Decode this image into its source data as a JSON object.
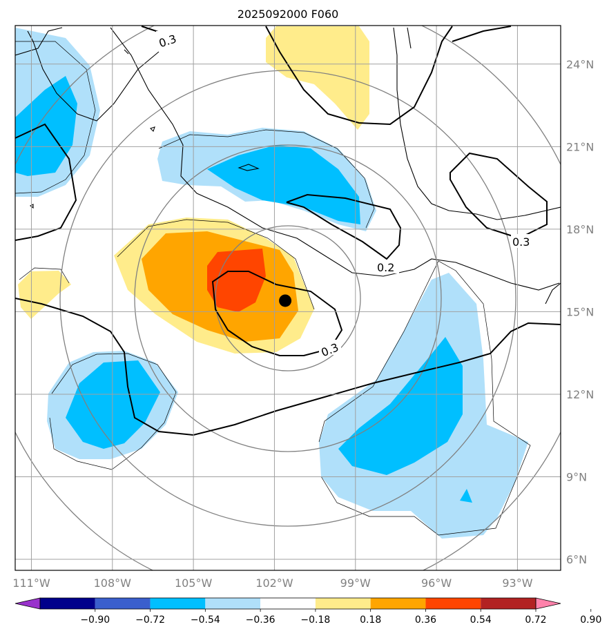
{
  "chart_data": {
    "type": "map-contour",
    "title": "2025092000 F060",
    "region": {
      "lon_range": [
        -111.6,
        -91.4
      ],
      "lat_range": [
        5.6,
        25.4
      ]
    },
    "lon_ticks": [
      -111,
      -108,
      -105,
      -102,
      -99,
      -96,
      -93
    ],
    "lon_labels": [
      "111°W",
      "108°W",
      "105°W",
      "102°W",
      "99°W",
      "96°W",
      "93°W"
    ],
    "lat_ticks": [
      6,
      9,
      12,
      15,
      18,
      21,
      24
    ],
    "lat_labels": [
      "6°N",
      "9°N",
      "12°N",
      "15°N",
      "18°N",
      "21°N",
      "24°N"
    ],
    "grid": true,
    "center_marker": {
      "lon": -101.6,
      "lat": 15.4
    },
    "range_rings_deg": [
      3,
      6,
      9,
      12
    ],
    "colorbar": {
      "levels": [
        -0.9,
        -0.72,
        -0.54,
        -0.36,
        -0.18,
        0.18,
        0.36,
        0.54,
        0.72,
        0.9
      ],
      "tick_labels": [
        "−0.90",
        "−0.72",
        "−0.54",
        "−0.36",
        "−0.18",
        "0.18",
        "0.36",
        "0.54",
        "0.72",
        "0.90"
      ],
      "colors": [
        "#9932cc",
        "#00008b",
        "#3a5fcd",
        "#00bfff",
        "#b0e0fa",
        "#ffffff",
        "#ffec8b",
        "#ffa500",
        "#ff4500",
        "#b22222",
        "#ff82ab"
      ],
      "extend": "both"
    },
    "contour_labels": [
      "0.3",
      "0.3",
      "0.2",
      "0.3"
    ],
    "shaded_regions": [
      {
        "sign": "positive",
        "max_level": 0.72,
        "center": [
          -103.5,
          16.0
        ]
      },
      {
        "sign": "positive",
        "max_level": 0.36,
        "center": [
          -100.2,
          23.4
        ]
      },
      {
        "sign": "positive",
        "max_level": 0.36,
        "center": [
          -110.6,
          15.5
        ]
      },
      {
        "sign": "negative",
        "min_level": -0.54,
        "center": [
          -101.0,
          19.6
        ]
      },
      {
        "sign": "negative",
        "min_level": -0.54,
        "center": [
          -110.5,
          21.5
        ]
      },
      {
        "sign": "negative",
        "min_level": -0.54,
        "center": [
          -108.0,
          11.2
        ]
      },
      {
        "sign": "negative",
        "min_level": -0.54,
        "center": [
          -96.8,
          10.5
        ]
      }
    ]
  }
}
